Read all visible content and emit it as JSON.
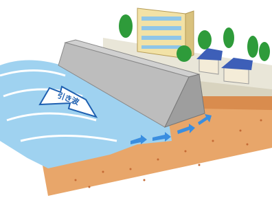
{
  "illustration": {
    "arrow_label": "引き波"
  }
}
